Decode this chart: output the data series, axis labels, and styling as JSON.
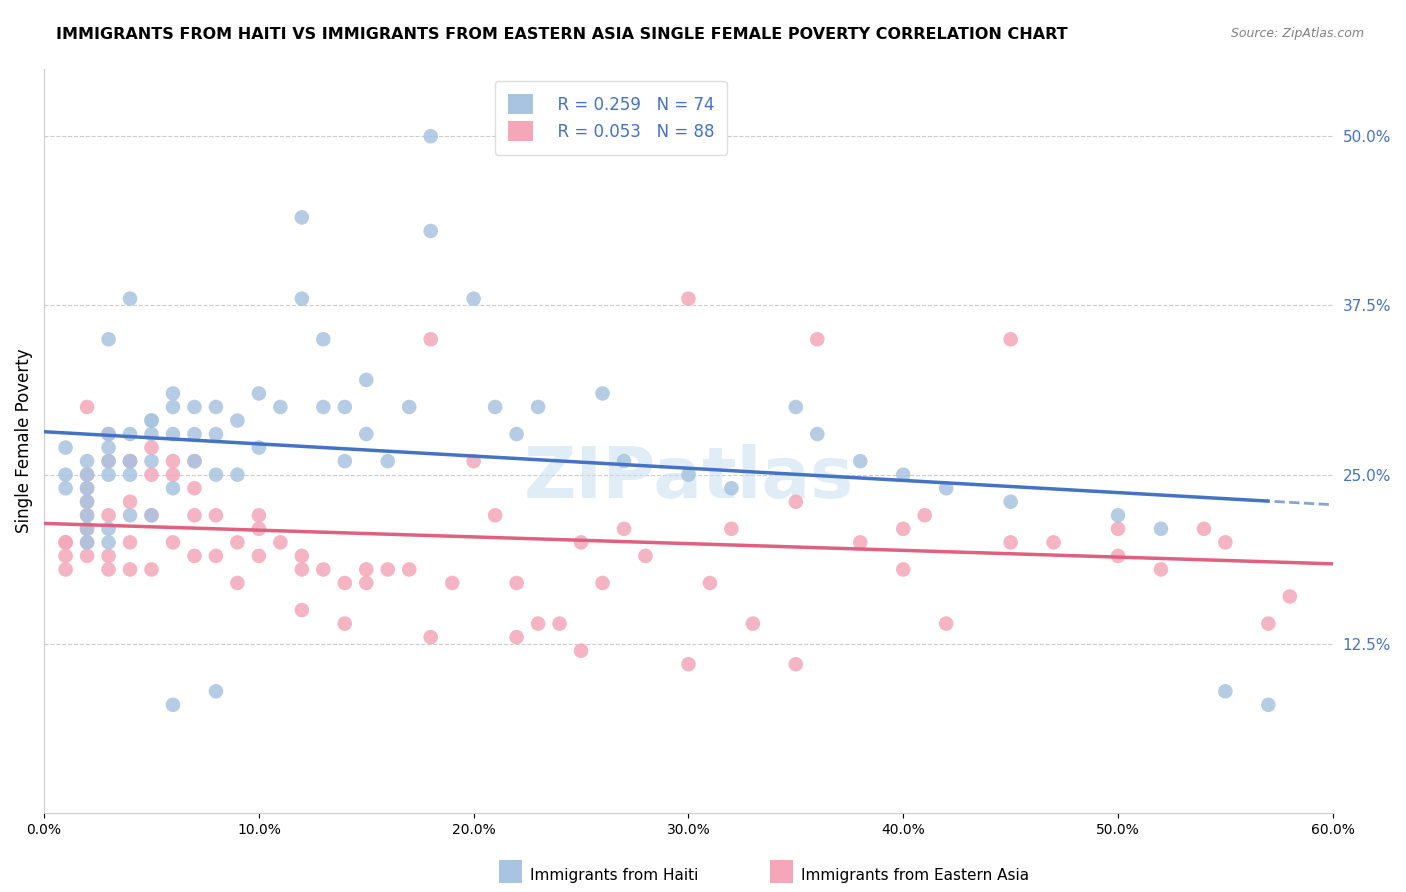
{
  "title": "IMMIGRANTS FROM HAITI VS IMMIGRANTS FROM EASTERN ASIA SINGLE FEMALE POVERTY CORRELATION CHART",
  "source": "Source: ZipAtlas.com",
  "ylabel": "Single Female Poverty",
  "right_yticks": [
    "50.0%",
    "37.5%",
    "25.0%",
    "12.5%"
  ],
  "right_ytick_vals": [
    0.5,
    0.375,
    0.25,
    0.125
  ],
  "xlim": [
    0.0,
    0.6
  ],
  "ylim": [
    0.0,
    0.55
  ],
  "haiti_R": "0.259",
  "haiti_N": "74",
  "eastern_asia_R": "0.053",
  "eastern_asia_N": "88",
  "haiti_color": "#a8c4e0",
  "eastern_asia_color": "#f4a7b9",
  "haiti_line_color": "#4472c4",
  "eastern_asia_line_color": "#e06080",
  "legend_text_color": "#4472c4",
  "watermark": "ZIPatlas",
  "haiti_x": [
    0.01,
    0.01,
    0.01,
    0.02,
    0.02,
    0.02,
    0.02,
    0.02,
    0.02,
    0.03,
    0.03,
    0.03,
    0.03,
    0.03,
    0.03,
    0.04,
    0.04,
    0.04,
    0.04,
    0.05,
    0.05,
    0.05,
    0.05,
    0.06,
    0.06,
    0.06,
    0.06,
    0.07,
    0.07,
    0.07,
    0.08,
    0.08,
    0.08,
    0.09,
    0.09,
    0.1,
    0.1,
    0.11,
    0.12,
    0.12,
    0.13,
    0.13,
    0.14,
    0.14,
    0.15,
    0.15,
    0.16,
    0.17,
    0.18,
    0.18,
    0.2,
    0.21,
    0.22,
    0.23,
    0.26,
    0.27,
    0.3,
    0.32,
    0.35,
    0.36,
    0.38,
    0.4,
    0.42,
    0.45,
    0.5,
    0.52,
    0.55,
    0.57,
    0.06,
    0.08,
    0.03,
    0.04,
    0.02,
    0.05
  ],
  "haiti_y": [
    0.27,
    0.25,
    0.24,
    0.26,
    0.25,
    0.24,
    0.23,
    0.22,
    0.2,
    0.28,
    0.27,
    0.26,
    0.25,
    0.21,
    0.2,
    0.28,
    0.26,
    0.25,
    0.22,
    0.29,
    0.28,
    0.26,
    0.22,
    0.31,
    0.3,
    0.28,
    0.24,
    0.3,
    0.28,
    0.26,
    0.3,
    0.28,
    0.25,
    0.29,
    0.25,
    0.31,
    0.27,
    0.3,
    0.44,
    0.38,
    0.35,
    0.3,
    0.3,
    0.26,
    0.32,
    0.28,
    0.26,
    0.3,
    0.5,
    0.43,
    0.38,
    0.3,
    0.28,
    0.3,
    0.31,
    0.26,
    0.25,
    0.24,
    0.3,
    0.28,
    0.26,
    0.25,
    0.24,
    0.23,
    0.22,
    0.21,
    0.09,
    0.08,
    0.08,
    0.09,
    0.35,
    0.38,
    0.21,
    0.29
  ],
  "eastern_asia_x": [
    0.01,
    0.01,
    0.01,
    0.01,
    0.02,
    0.02,
    0.02,
    0.02,
    0.02,
    0.02,
    0.02,
    0.03,
    0.03,
    0.03,
    0.03,
    0.04,
    0.04,
    0.04,
    0.04,
    0.05,
    0.05,
    0.05,
    0.06,
    0.06,
    0.07,
    0.07,
    0.07,
    0.08,
    0.08,
    0.09,
    0.09,
    0.1,
    0.1,
    0.11,
    0.12,
    0.12,
    0.13,
    0.14,
    0.14,
    0.15,
    0.16,
    0.17,
    0.18,
    0.19,
    0.2,
    0.21,
    0.22,
    0.23,
    0.24,
    0.25,
    0.26,
    0.27,
    0.28,
    0.3,
    0.31,
    0.32,
    0.33,
    0.35,
    0.36,
    0.38,
    0.4,
    0.41,
    0.42,
    0.45,
    0.47,
    0.5,
    0.52,
    0.54,
    0.55,
    0.57,
    0.58,
    0.02,
    0.03,
    0.04,
    0.05,
    0.06,
    0.07,
    0.1,
    0.12,
    0.15,
    0.18,
    0.22,
    0.25,
    0.3,
    0.35,
    0.4,
    0.45,
    0.5
  ],
  "eastern_asia_y": [
    0.2,
    0.2,
    0.19,
    0.18,
    0.25,
    0.24,
    0.23,
    0.22,
    0.21,
    0.2,
    0.19,
    0.26,
    0.22,
    0.19,
    0.18,
    0.26,
    0.23,
    0.2,
    0.18,
    0.25,
    0.22,
    0.18,
    0.25,
    0.2,
    0.26,
    0.22,
    0.19,
    0.22,
    0.19,
    0.2,
    0.17,
    0.21,
    0.19,
    0.2,
    0.18,
    0.15,
    0.18,
    0.17,
    0.14,
    0.18,
    0.18,
    0.18,
    0.35,
    0.17,
    0.26,
    0.22,
    0.17,
    0.14,
    0.14,
    0.2,
    0.17,
    0.21,
    0.19,
    0.38,
    0.17,
    0.21,
    0.14,
    0.23,
    0.35,
    0.2,
    0.18,
    0.22,
    0.14,
    0.35,
    0.2,
    0.19,
    0.18,
    0.21,
    0.2,
    0.14,
    0.16,
    0.3,
    0.28,
    0.26,
    0.27,
    0.26,
    0.24,
    0.22,
    0.19,
    0.17,
    0.13,
    0.13,
    0.12,
    0.11,
    0.11,
    0.21,
    0.2,
    0.21
  ]
}
